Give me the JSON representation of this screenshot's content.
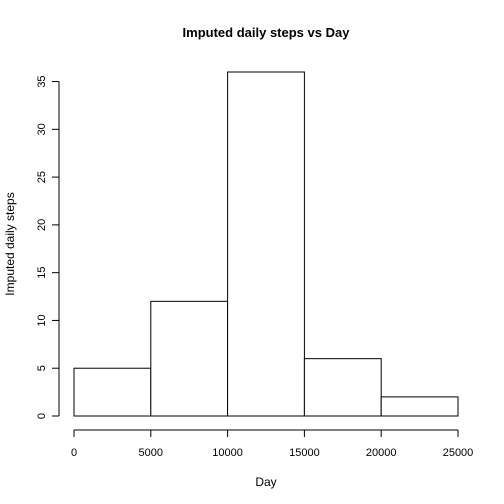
{
  "chart_data": {
    "type": "bar",
    "title": "Imputed daily steps vs Day",
    "xlabel": "Day",
    "ylabel": "Imputed daily steps",
    "bins": [
      {
        "x0": 0,
        "x1": 5000,
        "count": 5
      },
      {
        "x0": 5000,
        "x1": 10000,
        "count": 12
      },
      {
        "x0": 10000,
        "x1": 15000,
        "count": 36
      },
      {
        "x0": 15000,
        "x1": 20000,
        "count": 6
      },
      {
        "x0": 20000,
        "x1": 25000,
        "count": 2
      }
    ],
    "xticks": [
      0,
      5000,
      10000,
      15000,
      20000,
      25000
    ],
    "yticks": [
      0,
      5,
      10,
      15,
      20,
      25,
      30,
      35
    ],
    "xlim": [
      0,
      25000
    ],
    "ylim": [
      0,
      36
    ],
    "grid": false,
    "legend": "none"
  }
}
